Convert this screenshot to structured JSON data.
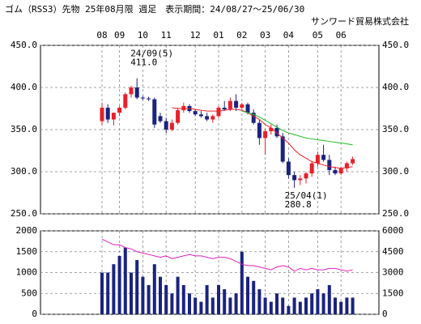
{
  "chart_data": [
    {
      "type": "candlestick",
      "title": "ゴム（RSS3）先物 25年08月限 週足　表示期間：24/08/27～25/06/30",
      "subtitle": "サンワード貿易株式会社",
      "categories": [
        "08",
        null,
        null,
        "09",
        null,
        null,
        null,
        "10",
        null,
        null,
        null,
        "11",
        null,
        null,
        null,
        null,
        "12",
        null,
        null,
        null,
        "01",
        null,
        null,
        null,
        "02",
        null,
        null,
        null,
        "03",
        null,
        null,
        null,
        "04",
        null,
        null,
        null,
        null,
        "05",
        null,
        null,
        null,
        "06",
        null,
        null
      ],
      "open": [
        360,
        376,
        362,
        370,
        376,
        392,
        400,
        388,
        387,
        386,
        366,
        360,
        350,
        358,
        373,
        378,
        372,
        368,
        366,
        362,
        366,
        376,
        374,
        384,
        376,
        380,
        370,
        358,
        340,
        348,
        352,
        342,
        312,
        296,
        290,
        292,
        298,
        310,
        320,
        314,
        302,
        298,
        304,
        310
      ],
      "high": [
        382,
        380,
        370,
        378,
        394,
        402,
        411,
        390,
        389,
        388,
        370,
        364,
        362,
        376,
        382,
        380,
        374,
        372,
        370,
        368,
        378,
        384,
        388,
        392,
        382,
        382,
        374,
        362,
        350,
        356,
        356,
        346,
        316,
        300,
        296,
        300,
        312,
        324,
        332,
        320,
        306,
        306,
        312,
        318
      ],
      "low": [
        355,
        358,
        355,
        366,
        374,
        388,
        386,
        385,
        384,
        352,
        358,
        346,
        348,
        356,
        370,
        370,
        366,
        364,
        360,
        358,
        364,
        372,
        372,
        372,
        374,
        368,
        356,
        332,
        320,
        344,
        340,
        310,
        292,
        280.8,
        284,
        286,
        294,
        306,
        312,
        296,
        296,
        296,
        300,
        308
      ],
      "close": [
        376,
        362,
        370,
        376,
        392,
        400,
        388,
        387,
        386,
        356,
        360,
        350,
        358,
        373,
        378,
        372,
        368,
        366,
        362,
        366,
        376,
        374,
        384,
        376,
        380,
        370,
        358,
        340,
        348,
        352,
        342,
        312,
        296,
        290,
        292,
        298,
        310,
        320,
        314,
        302,
        298,
        304,
        310,
        315
      ],
      "up_color": "#e8202a",
      "down_color": "#1a237e",
      "series": [
        {
          "color": "#e8202a",
          "values": [
            null,
            null,
            null,
            null,
            null,
            null,
            null,
            null,
            null,
            null,
            null,
            null,
            376,
            375,
            375,
            375,
            374,
            373,
            372,
            372,
            372,
            373,
            374,
            374,
            373,
            370,
            366,
            362,
            356,
            352,
            346,
            340,
            334,
            326,
            320,
            316,
            312,
            310,
            308,
            306,
            305,
            304,
            305,
            306
          ]
        },
        {
          "color": "#22b822",
          "values": [
            null,
            null,
            null,
            null,
            null,
            null,
            null,
            null,
            null,
            null,
            null,
            null,
            null,
            null,
            null,
            null,
            null,
            null,
            null,
            null,
            null,
            null,
            null,
            null,
            372,
            370,
            368,
            365,
            361,
            357,
            353,
            349,
            346,
            344,
            342,
            340,
            339,
            338,
            337,
            336,
            335,
            334,
            333,
            332
          ]
        }
      ],
      "annotations": [
        [
          "24/09(5)",
          "411.0"
        ],
        [
          "25/04(1)",
          "280.8"
        ]
      ],
      "ylim": [
        250,
        450
      ],
      "yticks": [
        {
          "value": 250,
          "label": "250.0"
        },
        {
          "value": 300,
          "label": "300.0"
        },
        {
          "value": 350,
          "label": "350.0"
        },
        {
          "value": 400,
          "label": "400.0"
        },
        {
          "value": 450,
          "label": "450.0"
        }
      ],
      "grid": true
    },
    {
      "type": "bar",
      "series": [
        {
          "color": "#1a237e",
          "values": [
            1000,
            1000,
            1200,
            1400,
            1600,
            1000,
            1300,
            900,
            700,
            1200,
            900,
            700,
            500,
            900,
            700,
            500,
            400,
            300,
            700,
            400,
            700,
            600,
            400,
            500,
            1500,
            900,
            800,
            600,
            400,
            300,
            500,
            400,
            200,
            400,
            300,
            400,
            500,
            600,
            500,
            700,
            400,
            300,
            400,
            400
          ]
        },
        {
          "color": "#e020c0",
          "axis": "y2",
          "values": [
            5400,
            5200,
            5000,
            5000,
            4800,
            4700,
            4500,
            4400,
            4300,
            4200,
            4100,
            4200,
            4000,
            4100,
            4200,
            4300,
            4200,
            4200,
            4100,
            4000,
            4100,
            4100,
            4000,
            3800,
            3600,
            3500,
            3500,
            3400,
            3300,
            3200,
            3400,
            3500,
            3400,
            3100,
            3300,
            3200,
            3300,
            3200,
            3200,
            3300,
            3300,
            3200,
            3100,
            3200
          ]
        }
      ],
      "ylim": [
        0,
        2000
      ],
      "yticks": [
        0,
        500,
        1000,
        1500,
        2000
      ],
      "y2lim": [
        0,
        6000
      ],
      "y2ticks": [
        0,
        1500,
        3000,
        4500,
        6000
      ],
      "y2color": "#e020c0",
      "grid": true
    }
  ]
}
